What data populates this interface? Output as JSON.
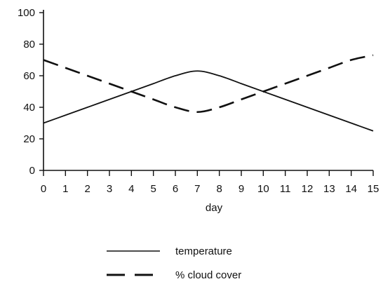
{
  "chart_data": {
    "type": "line",
    "xlabel": "day",
    "ylabel": "",
    "title": "",
    "xlim": [
      0,
      15
    ],
    "ylim": [
      0,
      100
    ],
    "x_ticks": [
      0,
      1,
      2,
      3,
      4,
      5,
      6,
      7,
      8,
      9,
      10,
      11,
      12,
      13,
      14,
      15
    ],
    "y_ticks": [
      0,
      20,
      40,
      60,
      80,
      100
    ],
    "grid": false,
    "legend_position": "bottom-center",
    "series": [
      {
        "name": "temperature",
        "line_style": "solid",
        "color": "#111111",
        "x": [
          0,
          1,
          2,
          3,
          4,
          5,
          6,
          7,
          8,
          9,
          10,
          11,
          12,
          13,
          14,
          15
        ],
        "values": [
          30,
          35,
          40,
          45,
          50,
          55,
          60,
          63,
          60,
          55,
          50,
          45,
          40,
          35,
          30,
          25
        ]
      },
      {
        "name": "% cloud cover",
        "line_style": "dashed",
        "color": "#111111",
        "x": [
          0,
          1,
          2,
          3,
          4,
          5,
          6,
          7,
          8,
          9,
          10,
          11,
          12,
          13,
          14,
          15
        ],
        "values": [
          70,
          65,
          60,
          55,
          50,
          45,
          40,
          37,
          40,
          45,
          50,
          55,
          60,
          65,
          70,
          73
        ]
      }
    ]
  }
}
